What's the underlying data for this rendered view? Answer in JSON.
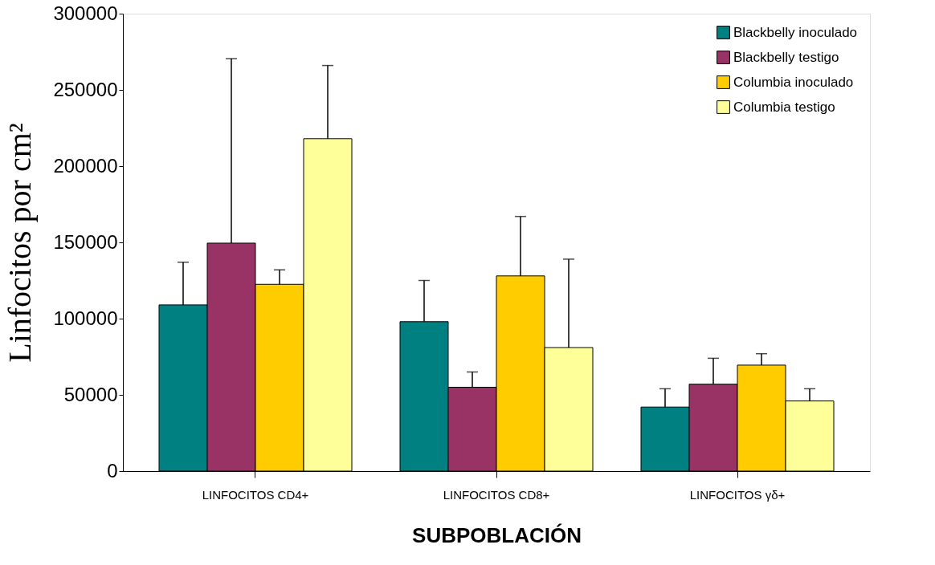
{
  "chart_data": {
    "type": "bar",
    "xlabel": "SUBPOBLACIÓN",
    "ylabel": "Linfocitos por cm²",
    "categories": [
      "LINFOCITOS CD4+",
      "LINFOCITOS CD8+",
      "LINFOCITOS γδ+"
    ],
    "series": [
      {
        "name": "Blackbelly inoculado",
        "color": "#008080",
        "values": [
          109000,
          98000,
          42000
        ],
        "errors": [
          [
            109000,
            137000
          ],
          [
            98000,
            125000
          ],
          [
            42000,
            54000
          ]
        ]
      },
      {
        "name": "Blackbelly testigo",
        "color": "#993366",
        "values": [
          149500,
          55000,
          57000
        ],
        "errors": [
          [
            149500,
            270500
          ],
          [
            55000,
            65000
          ],
          [
            57000,
            74000
          ]
        ]
      },
      {
        "name": "Columbia inoculado",
        "color": "#ffcc00",
        "values": [
          122500,
          128000,
          69500
        ],
        "errors": [
          [
            122500,
            132000
          ],
          [
            128000,
            167000
          ],
          [
            69500,
            77000
          ]
        ]
      },
      {
        "name": "Columbia testigo",
        "color": "#ffff99",
        "values": [
          218000,
          81000,
          46000
        ],
        "errors": [
          [
            218000,
            266000
          ],
          [
            81000,
            139000
          ],
          [
            46000,
            54000
          ]
        ]
      }
    ],
    "ylim": [
      0,
      300000
    ],
    "yticks": [
      0,
      50000,
      100000,
      150000,
      200000,
      250000,
      300000
    ],
    "grid": false,
    "legend": "top right"
  }
}
